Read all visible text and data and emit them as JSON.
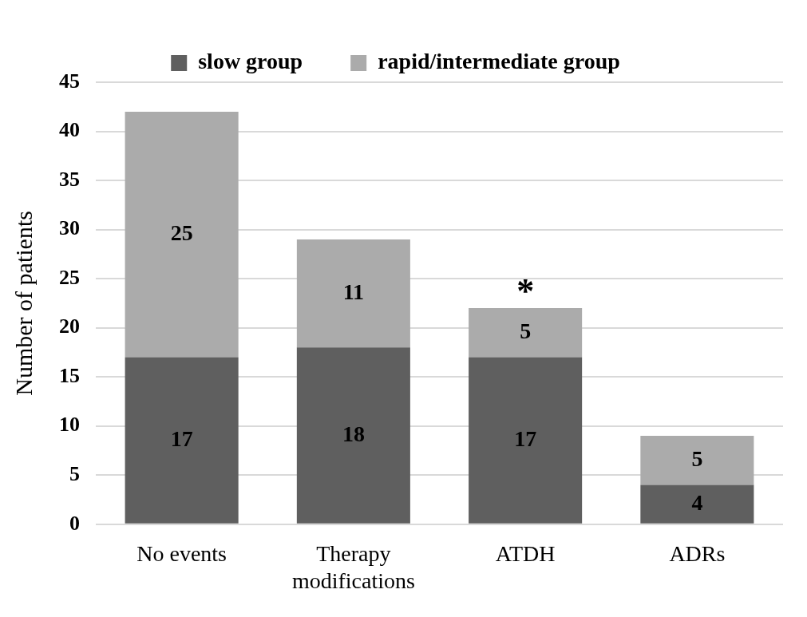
{
  "chart_data": {
    "type": "bar",
    "stacked": true,
    "ylabel": "Number of patients",
    "categories": [
      "No events",
      "Therapy modifications",
      "ATDH",
      "ADRs"
    ],
    "series": [
      {
        "name": "slow group",
        "color": "#5f5f5f",
        "values": [
          17,
          18,
          17,
          4
        ]
      },
      {
        "name": "rapid/intermediate group",
        "color": "#ababab",
        "values": [
          25,
          11,
          5,
          5
        ]
      }
    ],
    "ylim": [
      0,
      45
    ],
    "yticks": [
      0,
      5,
      10,
      15,
      20,
      25,
      30,
      35,
      40,
      45
    ],
    "grid": "y",
    "legend": "top",
    "data_labels": true,
    "annotations": [
      {
        "text": "*",
        "x": "ATDH",
        "y": 22
      }
    ]
  }
}
